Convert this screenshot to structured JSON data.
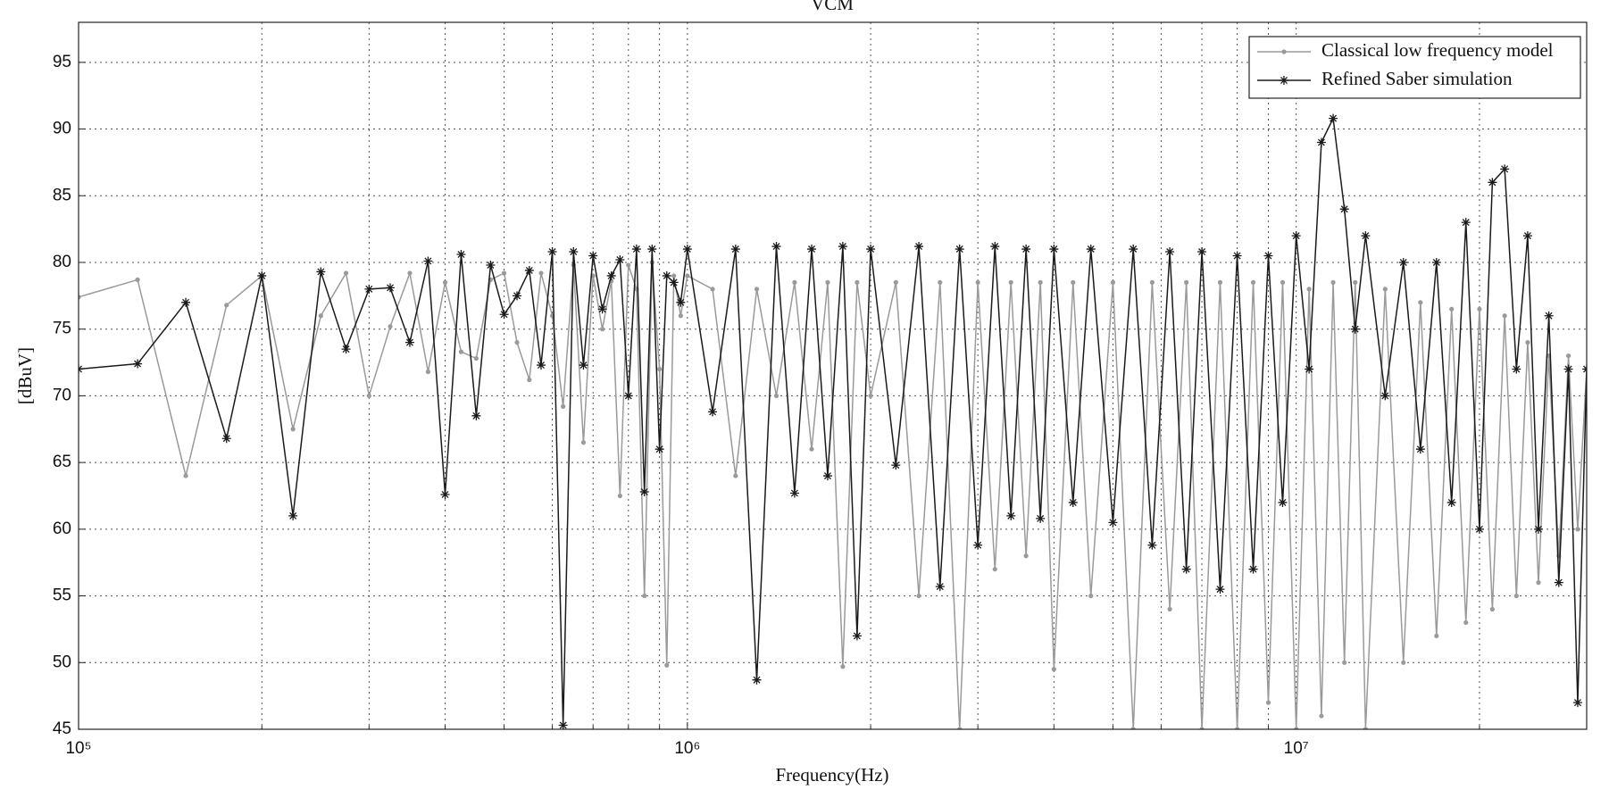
{
  "chart_data": {
    "type": "line",
    "title": "VCM",
    "xlabel": "Frequency(Hz)",
    "ylabel": "[dBuV]",
    "xscale": "log",
    "grid": true,
    "legend_position": "upper right",
    "xlim": [
      100000,
      30000000
    ],
    "ylim": [
      45,
      98
    ],
    "xticks": [
      {
        "value": 100000,
        "label": "10⁵"
      },
      {
        "value": 1000000,
        "label": "10⁶"
      },
      {
        "value": 10000000,
        "label": "10⁷"
      }
    ],
    "xminorticks": [
      200000,
      300000,
      400000,
      500000,
      600000,
      700000,
      800000,
      900000,
      2000000,
      3000000,
      4000000,
      5000000,
      6000000,
      7000000,
      8000000,
      9000000,
      20000000,
      30000000
    ],
    "yticks": [
      45,
      50,
      55,
      60,
      65,
      70,
      75,
      80,
      85,
      90,
      95
    ],
    "x": [
      100000,
      125000,
      150000,
      175000,
      200000,
      225000,
      250000,
      275000,
      300000,
      325000,
      350000,
      375000,
      400000,
      425000,
      450000,
      475000,
      500000,
      525000,
      550000,
      575000,
      600000,
      625000,
      650000,
      675000,
      700000,
      725000,
      750000,
      775000,
      800000,
      825000,
      850000,
      875000,
      900000,
      925000,
      950000,
      975000,
      1000000,
      1100000,
      1200000,
      1300000,
      1400000,
      1500000,
      1600000,
      1700000,
      1800000,
      1900000,
      2000000,
      2200000,
      2400000,
      2600000,
      2800000,
      3000000,
      3200000,
      3400000,
      3600000,
      3800000,
      4000000,
      4300000,
      4600000,
      5000000,
      5400000,
      5800000,
      6200000,
      6600000,
      7000000,
      7500000,
      8000000,
      8500000,
      9000000,
      9500000,
      10000000,
      10500000,
      11000000,
      11500000,
      12000000,
      12500000,
      13000000,
      14000000,
      15000000,
      16000000,
      17000000,
      18000000,
      19000000,
      20000000,
      21000000,
      22000000,
      23000000,
      24000000,
      25000000,
      26000000,
      27000000,
      28000000,
      29000000,
      30000000
    ],
    "series": [
      {
        "name": "Classical low frequency model",
        "color": "#9a9a9a",
        "marker": "dot",
        "values": [
          77.4,
          78.7,
          64,
          76.8,
          79,
          67.5,
          76,
          79.2,
          70,
          75.2,
          79.2,
          71.8,
          78.5,
          73.3,
          72.8,
          78.7,
          79.2,
          74,
          71.2,
          79.2,
          76,
          69.2,
          79.8,
          66.5,
          79,
          75,
          78.6,
          62.5,
          79.8,
          78,
          55,
          80,
          72,
          49.8,
          79,
          76,
          79,
          78,
          64,
          78,
          70,
          78.5,
          66,
          78.5,
          49.7,
          78.5,
          70,
          78.5,
          55,
          78.5,
          45,
          78.5,
          57,
          78.5,
          58,
          78.5,
          49.5,
          78.5,
          55,
          78.5,
          45,
          78.5,
          54,
          78.5,
          45,
          78.5,
          45,
          78.5,
          47,
          78.5,
          45,
          78,
          46,
          78.5,
          50,
          78.5,
          45,
          78,
          50,
          77,
          52,
          76.5,
          53,
          76.5,
          54,
          76,
          55,
          74,
          56,
          73,
          58,
          73,
          60,
          72
        ]
      },
      {
        "name": "Refined Saber simulation",
        "color": "#1a1a1a",
        "marker": "star",
        "values": [
          72,
          72.4,
          77,
          66.8,
          79,
          61,
          79.3,
          73.5,
          78,
          78.1,
          74,
          80.1,
          62.6,
          80.6,
          68.5,
          79.8,
          76.1,
          77.5,
          79.4,
          72.3,
          80.8,
          45.3,
          80.8,
          72.3,
          80.5,
          76.5,
          79,
          80.2,
          70,
          81,
          62.8,
          81,
          66,
          79,
          78.5,
          77,
          81,
          68.8,
          81,
          48.7,
          81.2,
          62.7,
          81,
          64,
          81.2,
          52,
          81,
          64.8,
          81.2,
          55.7,
          81,
          58.8,
          81.2,
          61,
          81,
          60.8,
          81,
          62,
          81,
          60.5,
          81,
          58.8,
          80.8,
          57,
          80.8,
          55.5,
          80.5,
          57,
          80.5,
          62,
          82,
          72,
          89,
          90.8,
          84,
          75,
          82,
          70,
          80,
          66,
          80,
          62,
          83,
          60,
          86,
          87,
          72,
          82,
          60,
          76,
          56,
          72,
          47,
          72
        ]
      }
    ]
  }
}
